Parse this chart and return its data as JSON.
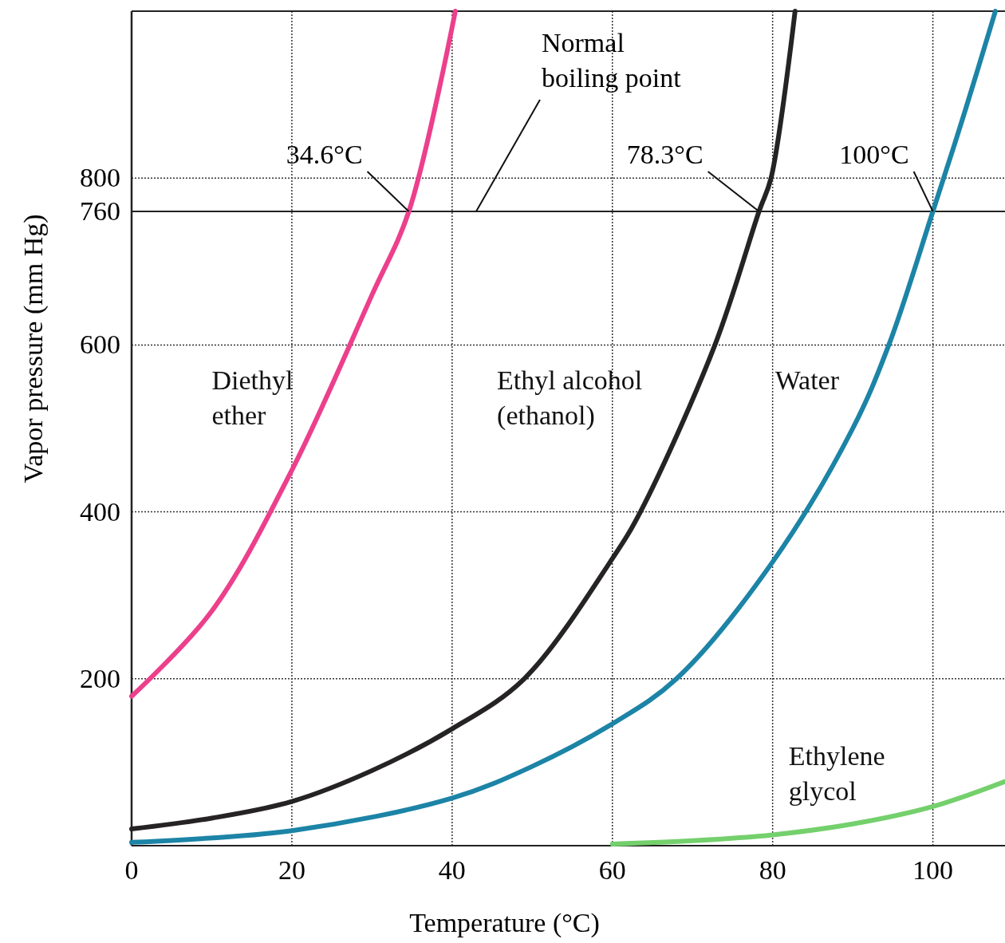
{
  "chart_data": {
    "type": "line",
    "xlabel": "Temperature (°C)",
    "ylabel": "Vapor pressure (mm Hg)",
    "xlim": [
      0,
      109
    ],
    "ylim": [
      0,
      1000
    ],
    "xticks": [
      {
        "value": 0,
        "label": "0"
      },
      20,
      40,
      60,
      80,
      100
    ],
    "yticks": [
      {
        "value": 0,
        "label": null
      },
      200,
      400,
      600,
      760,
      800
    ],
    "grid": true,
    "legend": false,
    "marker": "none",
    "line_style": "solid",
    "series": [
      {
        "name": "Diethyl ether",
        "color": "#ec3f8c",
        "x": [
          0,
          10,
          20,
          30,
          34.6,
          40.4
        ],
        "values": [
          179,
          281,
          450,
          660,
          760,
          1000
        ]
      },
      {
        "name": "Ethyl alcohol (ethanol)",
        "color": "#262324",
        "x": [
          0,
          10,
          20,
          30,
          40,
          49,
          60,
          63.5,
          72.8,
          78.3,
          79.8,
          82.8
        ],
        "values": [
          20,
          33,
          53,
          90,
          140,
          200,
          344,
          400,
          600,
          760,
          800,
          1000
        ]
      },
      {
        "name": "Water",
        "color": "#1c84a6",
        "x": [
          0,
          20,
          40,
          50,
          60,
          68,
          80,
          90,
          94.5,
          100,
          104,
          107.8
        ],
        "values": [
          4,
          18,
          57,
          95,
          146,
          200,
          340,
          500,
          600,
          760,
          880,
          1000
        ]
      },
      {
        "name": "Ethylene glycol",
        "color": "#74d06c",
        "x": [
          60,
          70,
          80,
          90,
          100,
          109
        ],
        "values": [
          2,
          6,
          13,
          26,
          47,
          77
        ]
      }
    ],
    "ref_lines": [
      {
        "axis": "y",
        "value": 760,
        "label": "Normal boiling point",
        "color": "#222222",
        "line_style": "solid"
      }
    ],
    "annotations": [
      {
        "text": "34.6°C",
        "x": 34.6,
        "y": 760
      },
      {
        "text": "78.3°C",
        "x": 78.3,
        "y": 760
      },
      {
        "text": "100°C",
        "x": 100,
        "y": 760
      }
    ]
  }
}
